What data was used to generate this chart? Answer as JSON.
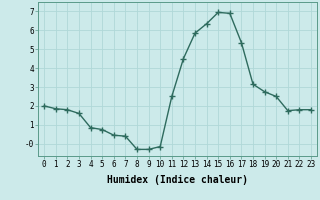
{
  "x": [
    0,
    1,
    2,
    3,
    4,
    5,
    6,
    7,
    8,
    9,
    10,
    11,
    12,
    13,
    14,
    15,
    16,
    17,
    18,
    19,
    20,
    21,
    22,
    23
  ],
  "y": [
    2.0,
    1.85,
    1.8,
    1.6,
    0.85,
    0.75,
    0.45,
    0.4,
    -0.3,
    -0.3,
    -0.15,
    2.5,
    4.5,
    5.85,
    6.35,
    6.95,
    6.9,
    5.35,
    3.15,
    2.75,
    2.5,
    1.75,
    1.8,
    1.8
  ],
  "line_color": "#2e6b5e",
  "marker": "+",
  "marker_size": 4,
  "linewidth": 1.0,
  "xlabel": "Humidex (Indice chaleur)",
  "xlabel_fontsize": 7,
  "ylabel_ticks": [
    0,
    1,
    2,
    3,
    4,
    5,
    6,
    7
  ],
  "ytick_labels": [
    "-0",
    "1",
    "2",
    "3",
    "4",
    "5",
    "6",
    "7"
  ],
  "xtick_labels": [
    "0",
    "1",
    "2",
    "3",
    "4",
    "5",
    "6",
    "7",
    "8",
    "9",
    "10",
    "11",
    "12",
    "13",
    "14",
    "15",
    "16",
    "17",
    "18",
    "19",
    "20",
    "21",
    "22",
    "23"
  ],
  "ylim": [
    -0.65,
    7.5
  ],
  "xlim": [
    -0.5,
    23.5
  ],
  "bg_color": "#cceaea",
  "grid_color": "#b0d8d8",
  "tick_fontsize": 5.5
}
